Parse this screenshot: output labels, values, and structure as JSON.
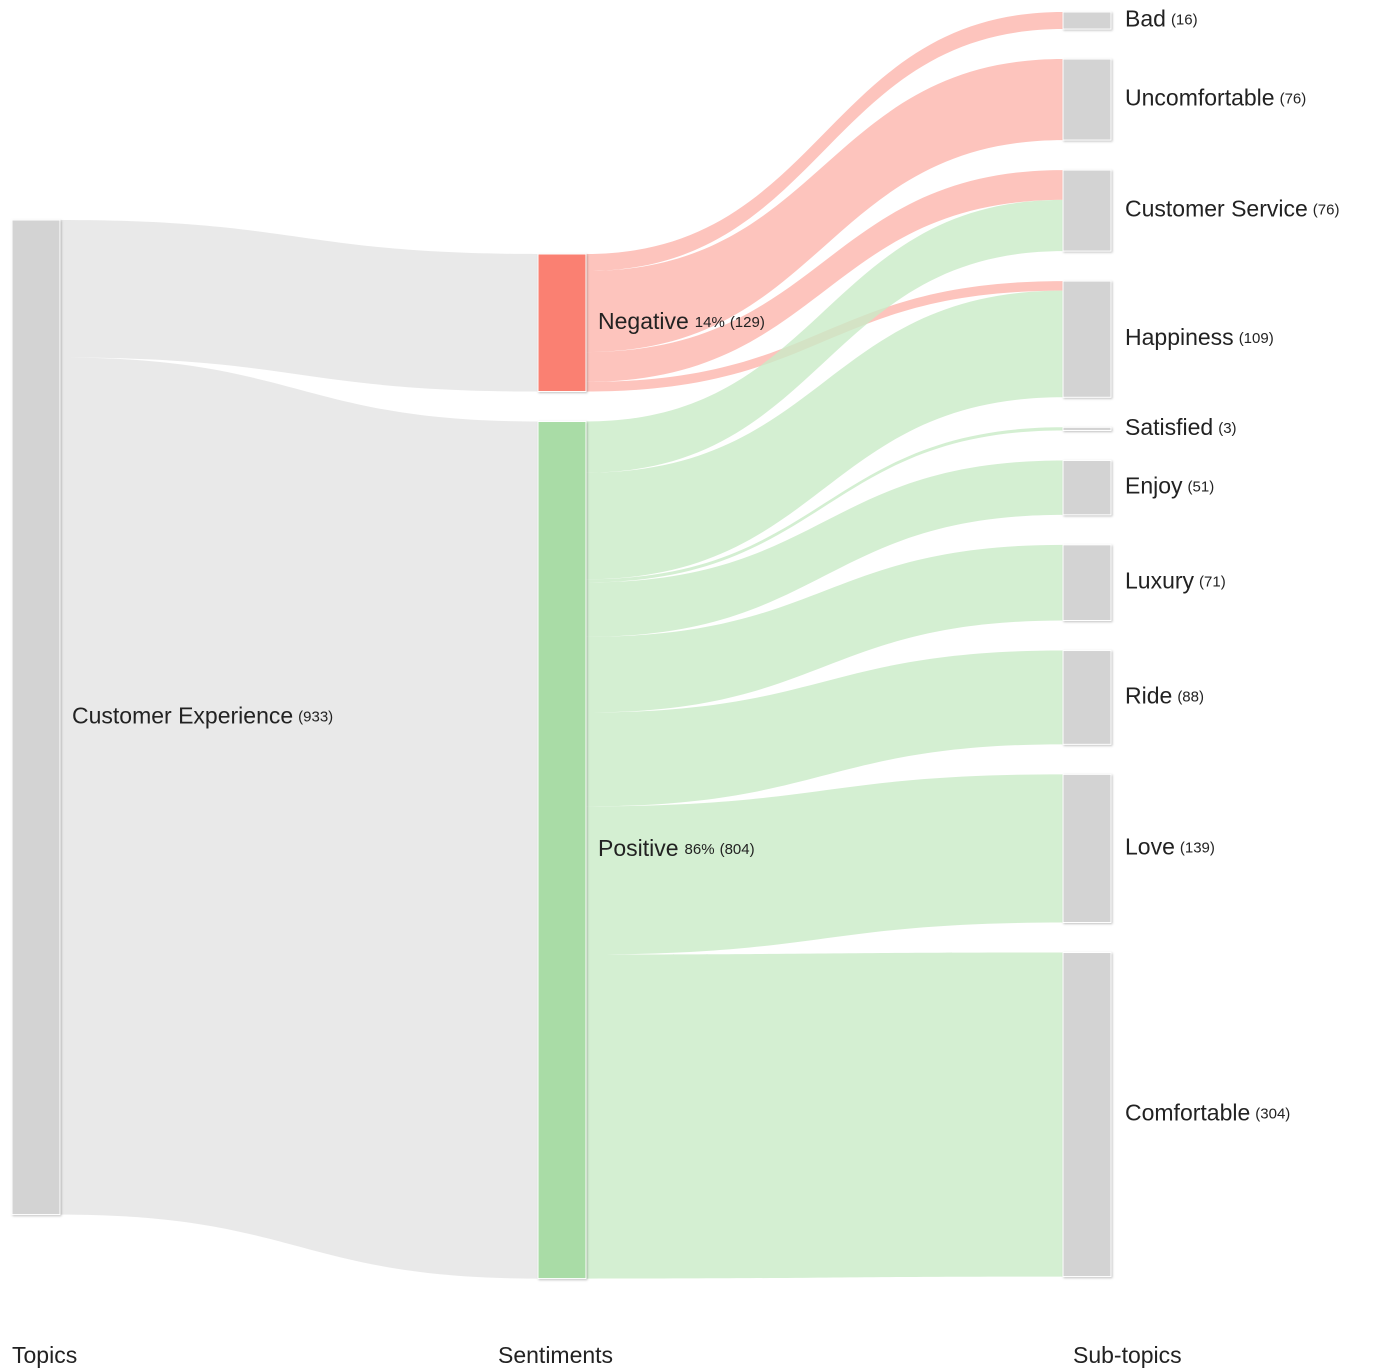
{
  "chart_data": {
    "type": "sankey",
    "columns": [
      "Topics",
      "Sentiments",
      "Sub-topics"
    ],
    "nodes": [
      {
        "name": "Customer Experience",
        "value": 933,
        "value_label": "(933)",
        "column": 0,
        "color": "#d3d3d3"
      },
      {
        "name": "Negative",
        "value": 129,
        "value_label": "(129)",
        "percent": 14,
        "percent_label": "14%",
        "column": 1,
        "color": "#fa8072"
      },
      {
        "name": "Positive",
        "value": 804,
        "value_label": "(804)",
        "percent": 86,
        "percent_label": "86%",
        "column": 1,
        "color": "#a9dca6"
      },
      {
        "name": "Bad",
        "value": 16,
        "value_label": "(16)",
        "column": 2,
        "color": "#d3d3d3"
      },
      {
        "name": "Uncomfortable",
        "value": 76,
        "value_label": "(76)",
        "column": 2,
        "color": "#d3d3d3"
      },
      {
        "name": "Customer Service",
        "value": 76,
        "value_label": "(76)",
        "column": 2,
        "color": "#d3d3d3"
      },
      {
        "name": "Happiness",
        "value": 109,
        "value_label": "(109)",
        "column": 2,
        "color": "#d3d3d3"
      },
      {
        "name": "Satisfied",
        "value": 3,
        "value_label": "(3)",
        "column": 2,
        "color": "#d3d3d3"
      },
      {
        "name": "Enjoy",
        "value": 51,
        "value_label": "(51)",
        "column": 2,
        "color": "#d3d3d3"
      },
      {
        "name": "Luxury",
        "value": 71,
        "value_label": "(71)",
        "column": 2,
        "color": "#d3d3d3"
      },
      {
        "name": "Ride",
        "value": 88,
        "value_label": "(88)",
        "column": 2,
        "color": "#d3d3d3"
      },
      {
        "name": "Love",
        "value": 139,
        "value_label": "(139)",
        "column": 2,
        "color": "#d3d3d3"
      },
      {
        "name": "Comfortable",
        "value": 304,
        "value_label": "(304)",
        "column": 2,
        "color": "#d3d3d3"
      }
    ],
    "links": [
      {
        "source": 0,
        "target": 1,
        "value": 129,
        "color": "#e3e3e3"
      },
      {
        "source": 0,
        "target": 2,
        "value": 804,
        "color": "#e3e3e3"
      },
      {
        "source": 1,
        "target": 3,
        "value": 16,
        "color": "#fdb5ad"
      },
      {
        "source": 1,
        "target": 4,
        "value": 76,
        "color": "#fdb5ad"
      },
      {
        "source": 1,
        "target": 5,
        "value": 28,
        "color": "#fdb5ad"
      },
      {
        "source": 1,
        "target": 6,
        "value": 9,
        "color": "#fdb5ad"
      },
      {
        "source": 2,
        "target": 5,
        "value": 48,
        "color": "#c9ebc7"
      },
      {
        "source": 2,
        "target": 6,
        "value": 100,
        "color": "#c9ebc7"
      },
      {
        "source": 2,
        "target": 7,
        "value": 3,
        "color": "#c9ebc7"
      },
      {
        "source": 2,
        "target": 8,
        "value": 51,
        "color": "#c9ebc7"
      },
      {
        "source": 2,
        "target": 9,
        "value": 71,
        "color": "#c9ebc7"
      },
      {
        "source": 2,
        "target": 10,
        "value": 88,
        "color": "#c9ebc7"
      },
      {
        "source": 2,
        "target": 11,
        "value": 139,
        "color": "#c9ebc7"
      },
      {
        "source": 2,
        "target": 12,
        "value": 304,
        "color": "#c9ebc7"
      }
    ]
  }
}
